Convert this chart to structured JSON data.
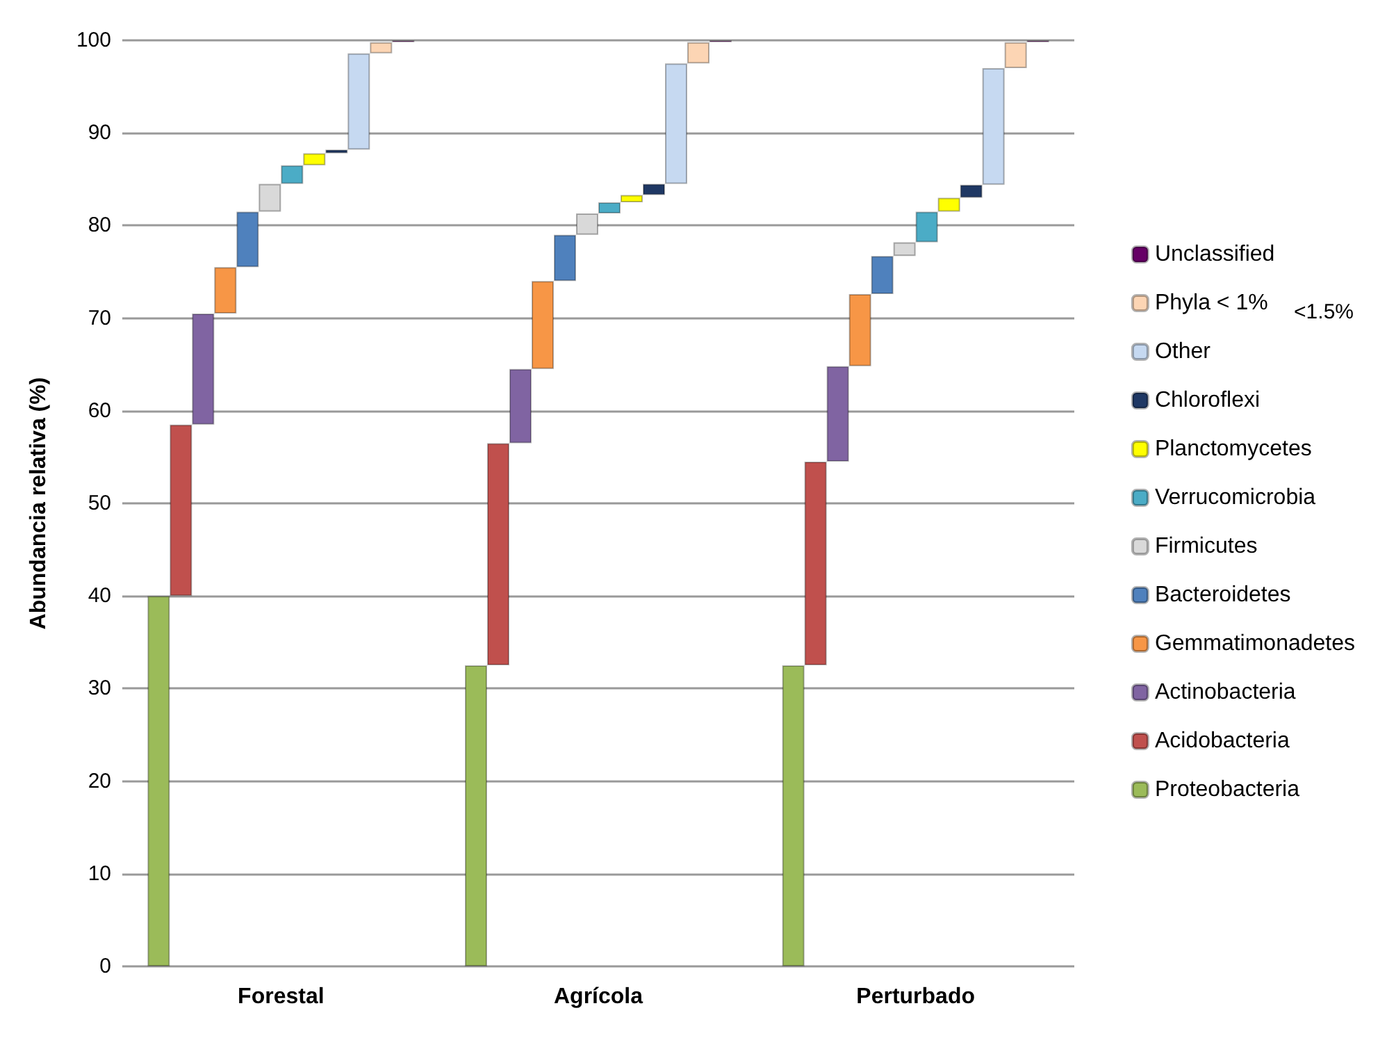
{
  "chart_data": {
    "type": "bar",
    "stacked": true,
    "ylabel": "Abundancia relativa (%)",
    "categories": [
      "Forestal",
      "Agrícola",
      "Perturbado"
    ],
    "series": [
      {
        "name": "Proteobacteria",
        "color": "#9bbb59",
        "values": [
          40,
          32.5,
          32.5
        ]
      },
      {
        "name": "Acidobacteria",
        "color": "#c0504d",
        "values": [
          18.5,
          24,
          22
        ]
      },
      {
        "name": "Actinobacteria",
        "color": "#8064a2",
        "values": [
          12,
          8,
          10.3
        ]
      },
      {
        "name": "Gemmatimonadetes",
        "color": "#f79646",
        "values": [
          5,
          9.5,
          7.8
        ]
      },
      {
        "name": "Bacteroidetes",
        "color": "#4f81bd",
        "values": [
          6,
          5,
          4.1
        ]
      },
      {
        "name": "Firmicutes",
        "color": "#d9d9d9",
        "values": [
          3,
          2.3,
          1.5
        ]
      },
      {
        "name": "Verrucomicrobia",
        "color": "#4bacc6",
        "values": [
          2,
          1.2,
          3.3
        ]
      },
      {
        "name": "Planctomycetes",
        "color": "#ffff00",
        "values": [
          1.3,
          0.8,
          1.5
        ]
      },
      {
        "name": "Chloroflexi",
        "color": "#1f3864",
        "values": [
          0.4,
          1.2,
          1.4
        ]
      },
      {
        "name": "Other",
        "color": "#c6d9f1",
        "values": [
          10.4,
          13,
          12.6
        ]
      },
      {
        "name": "Phyla < 1%",
        "color": "#fcd5b4",
        "values": [
          1.2,
          2.3,
          2.8
        ]
      },
      {
        "name": "Unclassified",
        "color": "#660066",
        "values": [
          0.2,
          0.2,
          0.2
        ]
      }
    ],
    "ylim": [
      0,
      100
    ],
    "yticks": [
      0,
      10,
      20,
      30,
      40,
      50,
      60,
      70,
      80,
      90,
      100
    ],
    "grid": "y",
    "legend": "right",
    "annotations": [
      "<1.5%"
    ]
  }
}
